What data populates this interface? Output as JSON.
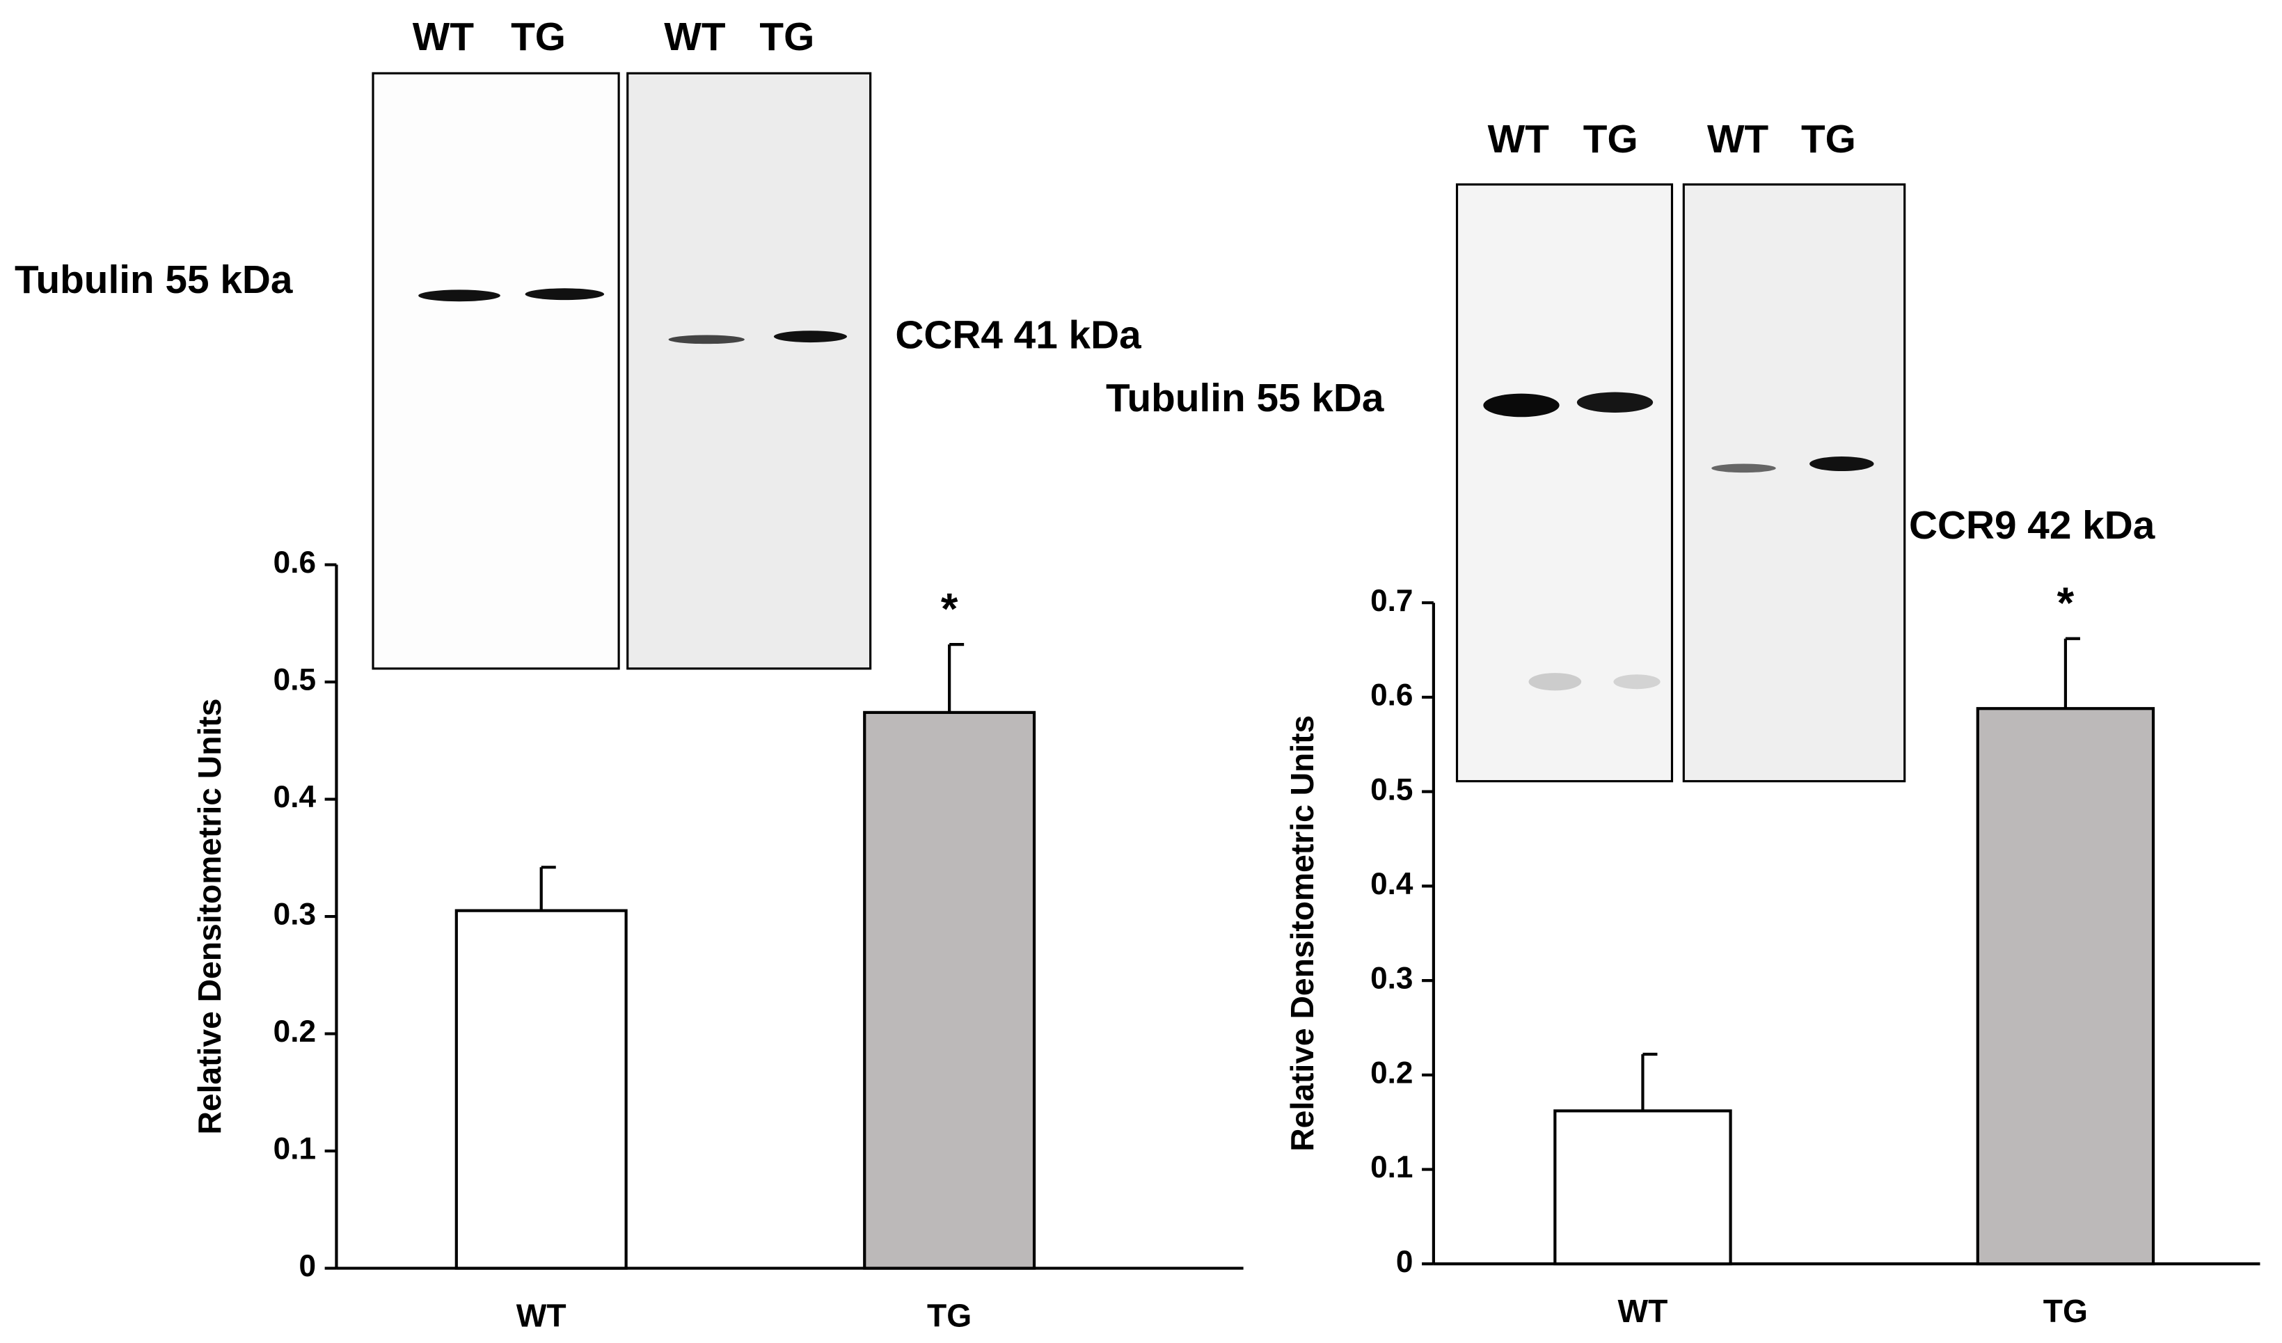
{
  "chart_data": [
    {
      "type": "bar",
      "y_label": "Relative Densitometric  Units",
      "categories": [
        "WT",
        "TG"
      ],
      "values": [
        0.305,
        0.474
      ],
      "errors": [
        0.037,
        0.058
      ],
      "colors": [
        "#ffffff",
        "#bcb9b9"
      ],
      "ylim": [
        0,
        0.6
      ],
      "yticks": [
        0,
        0.1,
        0.2,
        0.3,
        0.4,
        0.5,
        0.6
      ],
      "annotation": "*"
    },
    {
      "type": "bar",
      "y_label": "Relative Densitometric Units",
      "categories": [
        "WT",
        "TG"
      ],
      "values": [
        0.162,
        0.588
      ],
      "errors": [
        0.06,
        0.074
      ],
      "colors": [
        "#ffffff",
        "#bcb9b9"
      ],
      "ylim": [
        0,
        0.7
      ],
      "yticks": [
        0,
        0.1,
        0.2,
        0.3,
        0.4,
        0.5,
        0.6,
        0.7
      ],
      "annotation": "*"
    }
  ],
  "blots": [
    {
      "lanes": [
        "WT",
        "TG",
        "WT",
        "TG"
      ],
      "labels": [
        "Tubulin 55 kDa",
        "CCR4 41 kDa"
      ]
    },
    {
      "lanes": [
        "WT",
        "TG",
        "WT",
        "TG"
      ],
      "labels": [
        "Tubulin 55 kDa",
        "CCR9 42 kDa"
      ]
    }
  ]
}
